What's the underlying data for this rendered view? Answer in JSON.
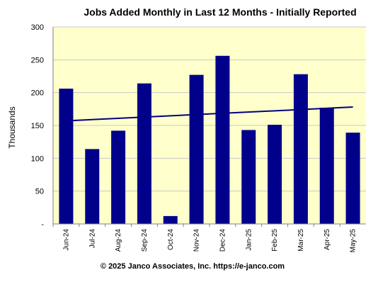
{
  "chart_data": {
    "type": "bar",
    "title": "Jobs Added Monthly in Last 12 Months - Initially Reported",
    "ylabel": "Thousands",
    "xlabel": "",
    "ylim": [
      0,
      300
    ],
    "yticks": [
      0,
      50,
      100,
      150,
      200,
      250,
      300
    ],
    "ytick_labels": [
      "-",
      "50",
      "100",
      "150",
      "200",
      "250",
      "300"
    ],
    "categories": [
      "Jun-24",
      "Jul-24",
      "Aug-24",
      "Sep-24",
      "Oct-24",
      "Nov-24",
      "Dec-24",
      "Jan-25",
      "Feb-25",
      "Mar-25",
      "Apr-25",
      "May-25"
    ],
    "values": [
      206,
      114,
      142,
      214,
      12,
      227,
      256,
      143,
      151,
      228,
      177,
      139
    ],
    "trendline": {
      "start": 157,
      "end": 178
    },
    "grid": true,
    "legend": "none"
  },
  "footer": "© 2025 Janco Associates, Inc. https://e-janco.com",
  "colors": {
    "bar": "#00008b",
    "trend": "#000080",
    "plot_bg": "#ffffcc",
    "grid": "#c8c8c8"
  }
}
